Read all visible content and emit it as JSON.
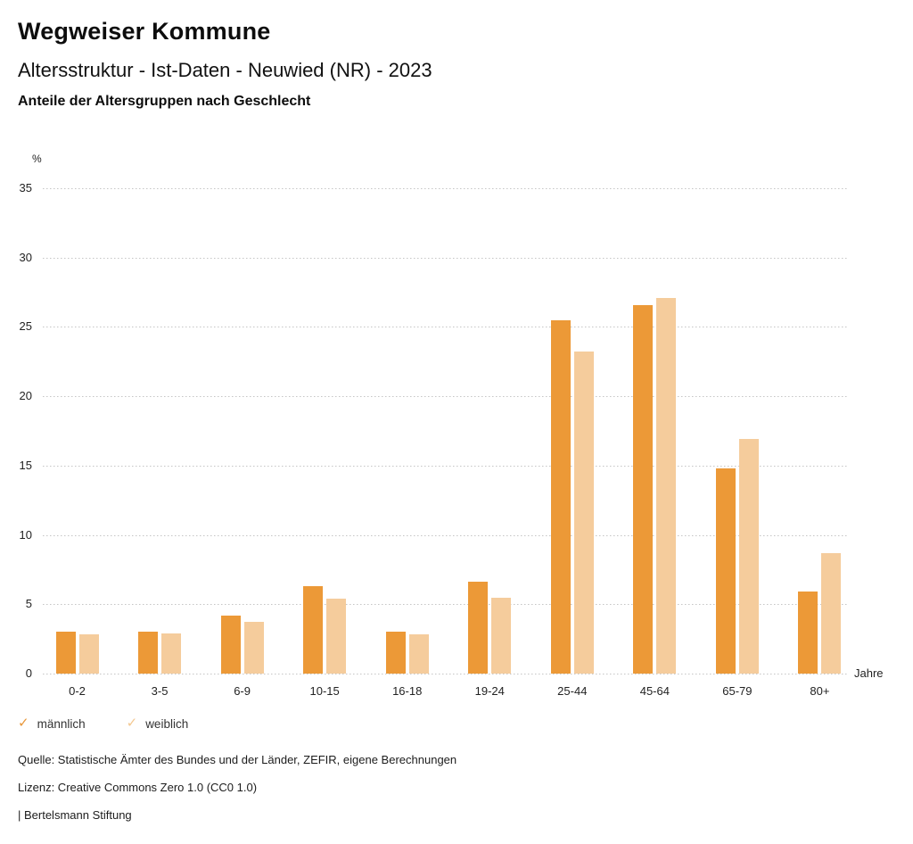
{
  "header": {
    "title": "Wegweiser Kommune",
    "subtitle": "Altersstruktur - Ist-Daten - Neuwied (NR) - 2023",
    "description": "Anteile der Altersgruppen nach Geschlecht"
  },
  "chart_data": {
    "type": "bar",
    "title": "Anteile der Altersgruppen nach Geschlecht",
    "categories": [
      "0-2",
      "3-5",
      "6-9",
      "10-15",
      "16-18",
      "19-24",
      "25-44",
      "45-64",
      "65-79",
      "80+"
    ],
    "series": [
      {
        "name": "männlich",
        "color": "#EC9937",
        "values": [
          3.0,
          3.0,
          4.2,
          6.3,
          3.0,
          6.6,
          25.5,
          26.6,
          14.8,
          5.9
        ]
      },
      {
        "name": "weiblich",
        "color": "#F5CC9C",
        "values": [
          2.8,
          2.9,
          3.7,
          5.4,
          2.8,
          5.5,
          23.2,
          27.1,
          16.9,
          8.7
        ]
      }
    ],
    "ylabel": "%",
    "xlabel": "Jahre",
    "ylim": [
      0,
      35
    ],
    "ytick_step": 5,
    "grid": "horizontal-dotted",
    "legend_position": "bottom-left"
  },
  "legend": {
    "check_icon": "✓",
    "items": [
      {
        "label": "männlich",
        "color": "#E8973B"
      },
      {
        "label": "weiblich",
        "color": "#F3C891"
      }
    ]
  },
  "footer": {
    "source": "Quelle: Statistische Ämter des Bundes und der Länder, ZEFIR, eigene Berechnungen",
    "license": "Lizenz: Creative Commons Zero 1.0 (CC0 1.0)",
    "attribution": "| Bertelsmann Stiftung"
  }
}
